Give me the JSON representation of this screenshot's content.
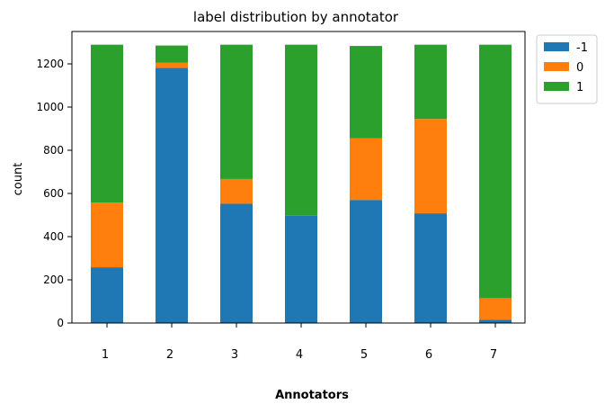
{
  "chart_data": {
    "type": "bar",
    "stacked": true,
    "title": "label distribution by annotator",
    "xlabel": "Annotators",
    "ylabel": "count",
    "categories": [
      "1",
      "2",
      "3",
      "4",
      "5",
      "6",
      "7"
    ],
    "series": [
      {
        "name": "-1",
        "color": "#1f77b4",
        "values": [
          258,
          1182,
          552,
          497,
          570,
          508,
          15
        ]
      },
      {
        "name": "0",
        "color": "#ff7f0e",
        "values": [
          300,
          23,
          115,
          0,
          285,
          437,
          100
        ]
      },
      {
        "name": "1",
        "color": "#2ca02c",
        "values": [
          731,
          80,
          622,
          792,
          428,
          344,
          1174
        ]
      }
    ],
    "ylim": [
      0,
      1350
    ],
    "yticks": [
      0,
      200,
      400,
      600,
      800,
      1000,
      1200
    ],
    "grid": false,
    "legend_position": "outside-top-right"
  }
}
